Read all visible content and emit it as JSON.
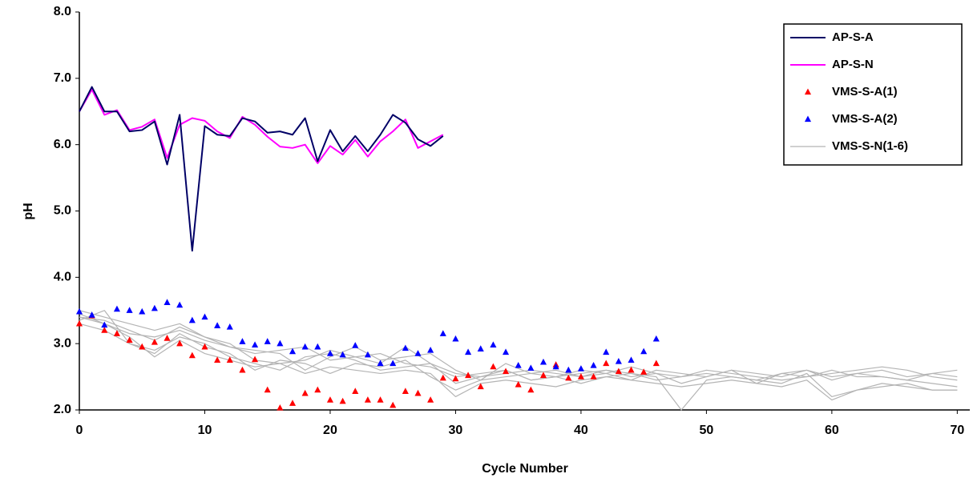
{
  "chart_data": {
    "type": "line",
    "xlabel": "Cycle Number",
    "ylabel": "pH",
    "xlim": [
      0,
      71
    ],
    "ylim": [
      2,
      8
    ],
    "xticks": [
      0,
      10,
      20,
      30,
      40,
      50,
      60,
      70
    ],
    "yticks": [
      {
        "value": 2,
        "label": "2.0"
      },
      {
        "value": 3,
        "label": "3.0"
      },
      {
        "value": 4,
        "label": "4.0"
      },
      {
        "value": 5,
        "label": "5.0"
      },
      {
        "value": 6,
        "label": "6.0"
      },
      {
        "value": 7,
        "label": "7.0"
      },
      {
        "value": 8,
        "label": "8.0"
      }
    ],
    "grid": false,
    "legend": "upper right",
    "series": [
      {
        "name": "AP-S-A",
        "color": "#000066",
        "kind": "line",
        "x": [
          0,
          1,
          2,
          3,
          4,
          5,
          6,
          7,
          8,
          9,
          10,
          11,
          12,
          13,
          14,
          15,
          16,
          17,
          18,
          19,
          20,
          21,
          22,
          23,
          24,
          25,
          26,
          27,
          28,
          29
        ],
        "values": [
          6.5,
          6.87,
          6.5,
          6.5,
          6.2,
          6.22,
          6.35,
          5.7,
          6.45,
          4.4,
          6.28,
          6.15,
          6.13,
          6.4,
          6.35,
          6.18,
          6.2,
          6.15,
          6.4,
          5.75,
          6.22,
          5.9,
          6.13,
          5.9,
          6.15,
          6.45,
          6.33,
          6.08,
          5.98,
          6.13
        ]
      },
      {
        "name": "AP-S-N",
        "color": "#ff00ff",
        "kind": "line",
        "x": [
          0,
          1,
          2,
          3,
          4,
          5,
          6,
          7,
          8,
          9,
          10,
          11,
          12,
          13,
          14,
          15,
          16,
          17,
          18,
          19,
          20,
          21,
          22,
          23,
          24,
          25,
          26,
          27,
          28,
          29
        ],
        "values": [
          6.5,
          6.83,
          6.45,
          6.52,
          6.22,
          6.27,
          6.38,
          5.8,
          6.3,
          6.4,
          6.36,
          6.2,
          6.1,
          6.42,
          6.3,
          6.12,
          5.97,
          5.95,
          6.0,
          5.72,
          5.98,
          5.85,
          6.07,
          5.82,
          6.05,
          6.2,
          6.38,
          5.95,
          6.05,
          6.15
        ]
      },
      {
        "name": "VMS-S-A(1)",
        "color": "#ff0000",
        "kind": "marker",
        "x": [
          0,
          1,
          2,
          3,
          4,
          5,
          6,
          7,
          8,
          9,
          10,
          11,
          12,
          13,
          14,
          15,
          16,
          17,
          18,
          19,
          20,
          21,
          22,
          23,
          24,
          25,
          26,
          27,
          28,
          29,
          30,
          31,
          32,
          33,
          34,
          35,
          36,
          37,
          38,
          39,
          40,
          41,
          42,
          43,
          44,
          45,
          46
        ],
        "values": [
          3.3,
          3.42,
          3.2,
          3.15,
          3.05,
          2.95,
          3.02,
          3.08,
          3.0,
          2.82,
          2.95,
          2.75,
          2.75,
          2.6,
          2.76,
          2.3,
          2.03,
          2.1,
          2.25,
          2.3,
          2.15,
          2.13,
          2.28,
          2.15,
          2.15,
          2.07,
          2.28,
          2.25,
          2.15,
          2.48,
          2.47,
          2.52,
          2.35,
          2.65,
          2.58,
          2.38,
          2.3,
          2.52,
          2.68,
          2.48,
          2.5,
          2.5,
          2.7,
          2.58,
          2.6,
          2.57,
          2.7
        ]
      },
      {
        "name": "VMS-S-A(2)",
        "color": "#0000ff",
        "kind": "marker",
        "x": [
          0,
          1,
          2,
          3,
          4,
          5,
          6,
          7,
          8,
          9,
          10,
          11,
          12,
          13,
          14,
          15,
          16,
          17,
          18,
          19,
          20,
          21,
          22,
          23,
          24,
          25,
          26,
          27,
          28,
          29,
          30,
          31,
          32,
          33,
          34,
          35,
          36,
          37,
          38,
          39,
          40,
          41,
          42,
          43,
          44,
          45,
          46
        ],
        "values": [
          3.48,
          3.43,
          3.28,
          3.52,
          3.5,
          3.48,
          3.53,
          3.62,
          3.58,
          3.35,
          3.4,
          3.27,
          3.25,
          3.03,
          2.98,
          3.03,
          3.0,
          2.88,
          2.95,
          2.95,
          2.85,
          2.83,
          2.97,
          2.83,
          2.7,
          2.7,
          2.93,
          2.85,
          2.9,
          3.15,
          3.07,
          2.87,
          2.92,
          2.98,
          2.87,
          2.67,
          2.63,
          2.72,
          2.65,
          2.6,
          2.62,
          2.67,
          2.87,
          2.73,
          2.75,
          2.88,
          3.07
        ]
      },
      {
        "name": "VMS-S-N(1-6)",
        "color": "#b4b4b4",
        "kind": "multiline",
        "x": [
          0,
          2,
          4,
          6,
          8,
          10,
          12,
          14,
          16,
          18,
          20,
          22,
          24,
          26,
          28,
          30,
          32,
          34,
          36,
          38,
          40,
          42,
          44,
          46,
          48,
          50,
          52,
          54,
          56,
          58,
          60,
          62,
          64,
          66,
          68,
          70
        ],
        "lines": [
          [
            3.45,
            3.3,
            3.15,
            3.1,
            3.2,
            3.05,
            2.95,
            2.9,
            2.85,
            2.6,
            2.8,
            2.95,
            2.75,
            2.8,
            2.85,
            2.6,
            2.45,
            2.7,
            2.55,
            2.6,
            2.5,
            2.55,
            2.45,
            2.6,
            2.55,
            2.5,
            2.6,
            2.55,
            2.5,
            2.6,
            2.45,
            2.55,
            2.6,
            2.5,
            2.55,
            2.5
          ],
          [
            3.4,
            3.35,
            3.2,
            3.05,
            3.25,
            3.1,
            3.0,
            2.75,
            2.7,
            2.75,
            2.9,
            2.8,
            2.7,
            2.95,
            2.7,
            2.55,
            2.5,
            2.6,
            2.45,
            2.5,
            2.55,
            2.6,
            2.55,
            2.5,
            2.0,
            2.45,
            2.5,
            2.45,
            2.4,
            2.55,
            2.2,
            2.3,
            2.35,
            2.4,
            2.3,
            2.3
          ],
          [
            3.35,
            3.5,
            3.0,
            2.9,
            3.1,
            3.0,
            2.8,
            2.7,
            2.6,
            2.8,
            2.85,
            2.75,
            2.6,
            2.65,
            2.7,
            2.4,
            2.5,
            2.55,
            2.6,
            2.55,
            2.5,
            2.6,
            2.5,
            2.55,
            2.4,
            2.5,
            2.6,
            2.4,
            2.55,
            2.5,
            2.55,
            2.6,
            2.65,
            2.6,
            2.5,
            2.45
          ],
          [
            3.3,
            3.2,
            3.0,
            2.85,
            3.15,
            2.95,
            2.85,
            2.6,
            2.75,
            2.7,
            2.55,
            2.7,
            2.65,
            2.75,
            2.5,
            2.3,
            2.45,
            2.5,
            2.55,
            2.5,
            2.6,
            2.55,
            2.65,
            2.55,
            2.5,
            2.6,
            2.55,
            2.5,
            2.45,
            2.5,
            2.6,
            2.5,
            2.5,
            2.45,
            2.4,
            2.35
          ],
          [
            3.5,
            3.4,
            3.3,
            3.2,
            3.3,
            3.1,
            2.95,
            2.85,
            2.9,
            2.95,
            2.75,
            2.8,
            2.85,
            2.7,
            2.65,
            2.5,
            2.55,
            2.6,
            2.45,
            2.5,
            2.4,
            2.5,
            2.55,
            2.45,
            2.5,
            2.55,
            2.5,
            2.45,
            2.55,
            2.6,
            2.5,
            2.55,
            2.5,
            2.45,
            2.55,
            2.6
          ],
          [
            3.4,
            3.3,
            3.1,
            2.8,
            3.05,
            2.85,
            2.75,
            2.65,
            2.7,
            2.55,
            2.65,
            2.6,
            2.55,
            2.6,
            2.55,
            2.2,
            2.4,
            2.45,
            2.4,
            2.35,
            2.45,
            2.5,
            2.45,
            2.4,
            2.35,
            2.4,
            2.45,
            2.4,
            2.35,
            2.45,
            2.15,
            2.3,
            2.4,
            2.35,
            2.3,
            2.3
          ]
        ]
      }
    ]
  }
}
